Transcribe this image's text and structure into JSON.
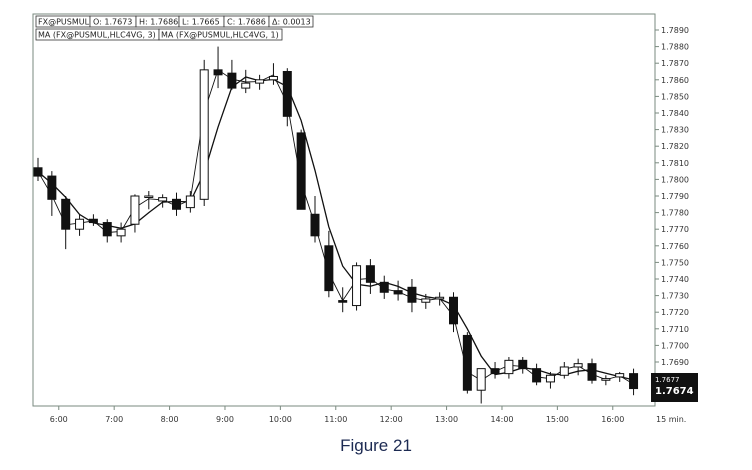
{
  "info_bar": {
    "symbol": "FX@PUSMUL",
    "open": "O: 1.7673",
    "high": "H: 1.7686",
    "low": "L: 1.7665",
    "close": "C: 1.7686",
    "delta": "Δ: 0.0013"
  },
  "ma_labels": [
    "MA (FX@PUSMUL,HLC4VG, 3)",
    "MA (FX@PUSMUL,HLC4VG, 1)"
  ],
  "last_price_box": {
    "top": "1.7677",
    "main": "1.7674"
  },
  "x_unit_label": "15 min.",
  "caption": "Figure 21",
  "chart_data": {
    "type": "candlestick",
    "title": "",
    "interval": "15 min.",
    "ylim": [
      1.7665,
      1.7895
    ],
    "y_ticks": [
      1.789,
      1.788,
      1.787,
      1.786,
      1.785,
      1.784,
      1.783,
      1.782,
      1.781,
      1.78,
      1.779,
      1.778,
      1.777,
      1.776,
      1.775,
      1.774,
      1.773,
      1.772,
      1.771,
      1.77,
      1.769
    ],
    "y_tick_labels": [
      "1.7890",
      "1.7880",
      "1.7870",
      "1.7860",
      "1.7850",
      "1.7840",
      "1.7830",
      "1.7820",
      "1.7810",
      "1.7800",
      "1.7790",
      "1.7780",
      "1.7770",
      "1.7760",
      "1.7750",
      "1.7740",
      "1.7730",
      "1.7720",
      "1.7710",
      "1.7700",
      "1.7690"
    ],
    "x_tick_labels": [
      "6:00",
      "7:00",
      "8:00",
      "9:00",
      "10:00",
      "11:00",
      "12:00",
      "13:00",
      "14:00",
      "15:00",
      "16:00"
    ],
    "x_tick_bar_index": [
      1.5,
      5.5,
      9.5,
      13.5,
      17.5,
      21.5,
      25.5,
      29.5,
      33.5,
      37.5,
      41.5
    ],
    "grid": false,
    "candles": [
      {
        "o": 1.7807,
        "h": 1.7813,
        "l": 1.7799,
        "c": 1.7802
      },
      {
        "o": 1.7802,
        "h": 1.7805,
        "l": 1.7778,
        "c": 1.7788
      },
      {
        "o": 1.7788,
        "h": 1.779,
        "l": 1.7758,
        "c": 1.777
      },
      {
        "o": 1.777,
        "h": 1.7779,
        "l": 1.7766,
        "c": 1.7776
      },
      {
        "o": 1.7776,
        "h": 1.7779,
        "l": 1.7772,
        "c": 1.7774
      },
      {
        "o": 1.7774,
        "h": 1.7776,
        "l": 1.7762,
        "c": 1.7766
      },
      {
        "o": 1.7766,
        "h": 1.7774,
        "l": 1.7762,
        "c": 1.777
      },
      {
        "o": 1.7773,
        "h": 1.7791,
        "l": 1.7768,
        "c": 1.779
      },
      {
        "o": 1.779,
        "h": 1.7793,
        "l": 1.7782,
        "c": 1.779
      },
      {
        "o": 1.7787,
        "h": 1.7791,
        "l": 1.7783,
        "c": 1.7789
      },
      {
        "o": 1.7788,
        "h": 1.7792,
        "l": 1.7778,
        "c": 1.7782
      },
      {
        "o": 1.7783,
        "h": 1.7793,
        "l": 1.778,
        "c": 1.779
      },
      {
        "o": 1.7788,
        "h": 1.7872,
        "l": 1.7784,
        "c": 1.7866
      },
      {
        "o": 1.7866,
        "h": 1.788,
        "l": 1.7855,
        "c": 1.7863
      },
      {
        "o": 1.7864,
        "h": 1.7872,
        "l": 1.7854,
        "c": 1.7855
      },
      {
        "o": 1.7855,
        "h": 1.7866,
        "l": 1.7852,
        "c": 1.7858
      },
      {
        "o": 1.7858,
        "h": 1.7863,
        "l": 1.7854,
        "c": 1.786
      },
      {
        "o": 1.786,
        "h": 1.787,
        "l": 1.7857,
        "c": 1.7862
      },
      {
        "o": 1.7865,
        "h": 1.7867,
        "l": 1.7832,
        "c": 1.7838
      },
      {
        "o": 1.7828,
        "h": 1.783,
        "l": 1.7782,
        "c": 1.7782
      },
      {
        "o": 1.7779,
        "h": 1.779,
        "l": 1.7762,
        "c": 1.7766
      },
      {
        "o": 1.776,
        "h": 1.7769,
        "l": 1.7729,
        "c": 1.7733
      },
      {
        "o": 1.7727,
        "h": 1.7735,
        "l": 1.772,
        "c": 1.7726
      },
      {
        "o": 1.7724,
        "h": 1.775,
        "l": 1.7721,
        "c": 1.7748
      },
      {
        "o": 1.7748,
        "h": 1.7752,
        "l": 1.7731,
        "c": 1.7738
      },
      {
        "o": 1.7738,
        "h": 1.7742,
        "l": 1.7728,
        "c": 1.7732
      },
      {
        "o": 1.7733,
        "h": 1.7739,
        "l": 1.7727,
        "c": 1.7731
      },
      {
        "o": 1.7735,
        "h": 1.774,
        "l": 1.772,
        "c": 1.7726
      },
      {
        "o": 1.7726,
        "h": 1.7731,
        "l": 1.7722,
        "c": 1.7728
      },
      {
        "o": 1.7728,
        "h": 1.7732,
        "l": 1.7724,
        "c": 1.7729
      },
      {
        "o": 1.7729,
        "h": 1.7732,
        "l": 1.7708,
        "c": 1.7713
      },
      {
        "o": 1.7706,
        "h": 1.7708,
        "l": 1.7671,
        "c": 1.7673
      },
      {
        "o": 1.7673,
        "h": 1.7686,
        "l": 1.7665,
        "c": 1.7686
      },
      {
        "o": 1.7686,
        "h": 1.769,
        "l": 1.768,
        "c": 1.7683
      },
      {
        "o": 1.7683,
        "h": 1.7693,
        "l": 1.768,
        "c": 1.7691
      },
      {
        "o": 1.7691,
        "h": 1.7693,
        "l": 1.7683,
        "c": 1.7686
      },
      {
        "o": 1.7686,
        "h": 1.7689,
        "l": 1.7676,
        "c": 1.7678
      },
      {
        "o": 1.7678,
        "h": 1.7684,
        "l": 1.7674,
        "c": 1.7682
      },
      {
        "o": 1.7682,
        "h": 1.769,
        "l": 1.768,
        "c": 1.7687
      },
      {
        "o": 1.7687,
        "h": 1.7692,
        "l": 1.7682,
        "c": 1.7689
      },
      {
        "o": 1.7689,
        "h": 1.7692,
        "l": 1.7677,
        "c": 1.7679
      },
      {
        "o": 1.7679,
        "h": 1.7682,
        "l": 1.7676,
        "c": 1.768
      },
      {
        "o": 1.7681,
        "h": 1.7684,
        "l": 1.7678,
        "c": 1.7683
      },
      {
        "o": 1.7683,
        "h": 1.7686,
        "l": 1.767,
        "c": 1.7674
      }
    ],
    "series": [
      {
        "type": "moving-average",
        "period": 3,
        "color": "#111111"
      },
      {
        "type": "moving-average",
        "period": 1,
        "color": "#111111"
      }
    ]
  },
  "colors": {
    "ink": "#111111",
    "frame": "#7a8a7f",
    "caption": "#1c2a52"
  }
}
